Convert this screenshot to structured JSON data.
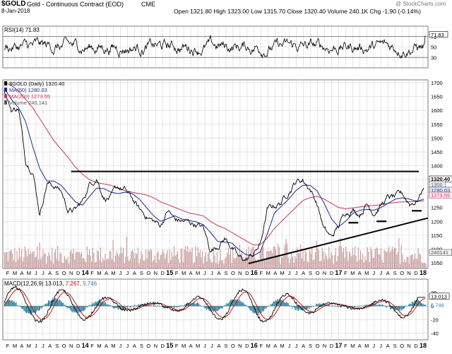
{
  "header": {
    "symbol": "$GOLD",
    "name": "Gold - Continuous Contract (EOD)",
    "exchange": "CME",
    "date": "8-Jan-2018",
    "watermark": "@ StockCharts.com",
    "quote": {
      "open_label": "Open",
      "open": "1321.80",
      "high_label": "High",
      "high": "1323.00",
      "low_label": "Low",
      "low": "1315.70",
      "close_label": "Close",
      "close": "1320.40",
      "volume_label": "Volume",
      "volume": "240.1K",
      "chg_label": "Chg",
      "chg": "-1.90 (-0.14%)"
    }
  },
  "chart_data": [
    {
      "type": "line",
      "panel": "rsi",
      "legend": "RSI(14) 71.83",
      "last_value_label": "71.83",
      "ylim": [
        10,
        90
      ],
      "ticks": [
        30,
        50,
        70
      ],
      "reference_lines": [
        30,
        70
      ],
      "last_value": 71.83
    },
    {
      "type": "line",
      "panel": "price",
      "title": "$GOLD (Daily) 1320.40",
      "ylim": [
        1030,
        1710
      ],
      "yticks": [
        1050,
        1100,
        1150,
        1200,
        1250,
        1300,
        1350,
        1400,
        1450,
        1500,
        1550,
        1600,
        1650,
        1700
      ],
      "volume_ticks": [
        1050,
        1100
      ],
      "x_months": [
        "F",
        "M",
        "A",
        "M",
        "J",
        "J",
        "A",
        "S",
        "O",
        "N",
        "D",
        "14",
        "F",
        "M",
        "A",
        "M",
        "J",
        "J",
        "A",
        "S",
        "O",
        "N",
        "D",
        "15",
        "F",
        "M",
        "A",
        "M",
        "J",
        "J",
        "A",
        "S",
        "O",
        "N",
        "D",
        "16",
        "F",
        "M",
        "A",
        "M",
        "J",
        "J",
        "A",
        "S",
        "O",
        "N",
        "D",
        "17",
        "F",
        "M",
        "A",
        "M",
        "J",
        "J",
        "A",
        "S",
        "O",
        "N",
        "D",
        "18"
      ],
      "series": [
        {
          "name": "$GOLD (Daily) 1320.40",
          "color": "#000000",
          "values": [
            1670,
            1600,
            1610,
            1420,
            1390,
            1230,
            1340,
            1330,
            1310,
            1240,
            1240,
            1270,
            1335,
            1360,
            1290,
            1285,
            1320,
            1310,
            1280,
            1240,
            1220,
            1200,
            1185,
            1240,
            1205,
            1200,
            1195,
            1190,
            1175,
            1095,
            1115,
            1140,
            1110,
            1065,
            1060,
            1080,
            1115,
            1240,
            1255,
            1270,
            1310,
            1345,
            1350,
            1320,
            1265,
            1170,
            1140,
            1180,
            1235,
            1245,
            1230,
            1265,
            1235,
            1260,
            1285,
            1285,
            1295,
            1265,
            1275,
            1320
          ]
        },
        {
          "name": "MA(50) 1280.03",
          "color": "#1a2a9a",
          "values": [
            1680,
            1640,
            1610,
            1560,
            1470,
            1390,
            1345,
            1345,
            1330,
            1300,
            1270,
            1258,
            1290,
            1320,
            1318,
            1305,
            1300,
            1305,
            1300,
            1280,
            1250,
            1220,
            1200,
            1210,
            1220,
            1208,
            1203,
            1198,
            1188,
            1160,
            1128,
            1125,
            1122,
            1098,
            1080,
            1075,
            1090,
            1155,
            1230,
            1255,
            1280,
            1310,
            1330,
            1330,
            1310,
            1265,
            1210,
            1180,
            1200,
            1228,
            1240,
            1243,
            1240,
            1250,
            1265,
            1280,
            1285,
            1280,
            1272,
            1280
          ]
        },
        {
          "name": "MA(200) 1273.55",
          "color": "#cc3366",
          "values": [
            1700,
            1690,
            1670,
            1640,
            1610,
            1570,
            1530,
            1490,
            1460,
            1430,
            1395,
            1370,
            1350,
            1340,
            1335,
            1330,
            1320,
            1310,
            1305,
            1300,
            1295,
            1285,
            1270,
            1260,
            1250,
            1240,
            1230,
            1225,
            1220,
            1200,
            1185,
            1175,
            1160,
            1145,
            1130,
            1115,
            1115,
            1140,
            1175,
            1200,
            1225,
            1250,
            1275,
            1285,
            1290,
            1280,
            1265,
            1250,
            1245,
            1248,
            1252,
            1255,
            1257,
            1260,
            1265,
            1268,
            1270,
            1271,
            1272,
            1273.55
          ]
        }
      ],
      "annotations": [
        {
          "kind": "resistance",
          "x_start": "O",
          "x_end": "D 17",
          "value": 1380
        },
        {
          "kind": "support-trend",
          "from": {
            "x": "D 15",
            "value": 1048
          },
          "to": {
            "x": "J 18",
            "value": 1210
          }
        },
        {
          "kind": "support-mark",
          "near": "M 17",
          "value": 1195
        },
        {
          "kind": "support-mark",
          "near": "J 17",
          "value": 1200
        },
        {
          "kind": "support-mark",
          "near": "D 17",
          "value": 1240
        }
      ],
      "last_labels": [
        {
          "text": "1320.40",
          "color": "#000000"
        },
        {
          "text": "1300",
          "color": "#555555"
        },
        {
          "text": "1280.03",
          "color": "#1a2a9a"
        },
        {
          "text": "1273.55",
          "color": "#cc3366"
        },
        {
          "text": "240141",
          "color": "#555555"
        }
      ]
    },
    {
      "type": "bar",
      "panel": "volume",
      "legend": "Volume 240,141",
      "color": "#c69a9a"
    },
    {
      "type": "line",
      "panel": "macd",
      "legend_prefix": "MACD(12,26,9)",
      "legend_values": [
        "13.013",
        "7.267",
        "5.746"
      ],
      "ylim": [
        -50,
        40
      ],
      "yticks": [
        -40,
        -20,
        0,
        20
      ],
      "last_value_label": "13.013",
      "hist_label": "5.746"
    }
  ],
  "colors": {
    "price": "#000000",
    "ma50": "#1a2a9a",
    "ma200": "#cc3366",
    "volume": "#c69a9a",
    "hist": "#2e7f9a",
    "grid": "#d6d6d6",
    "legend_red": "#cc0000",
    "legend_blue": "#2e7fb0"
  }
}
